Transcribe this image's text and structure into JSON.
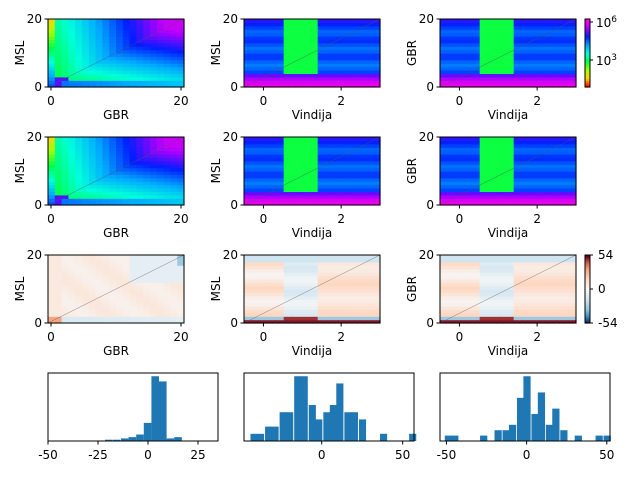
{
  "figure": {
    "rows": [
      [
        {
          "id": "p11",
          "xlabel": "GBR",
          "ylabel": "MSL",
          "xticks": [
            "0",
            "20"
          ],
          "yticks": [
            "0",
            "20"
          ],
          "variant": "gbr-rainbow"
        },
        {
          "id": "p12",
          "xlabel": "Vindija",
          "ylabel": "MSL",
          "xticks": [
            "0",
            "2"
          ],
          "yticks": [
            "0",
            "20"
          ],
          "variant": "vin-msl"
        },
        {
          "id": "p13",
          "xlabel": "Vindija",
          "ylabel": "GBR",
          "xticks": [
            "0",
            "2"
          ],
          "yticks": [
            "0",
            "20"
          ],
          "variant": "vin-gbr"
        }
      ],
      [
        {
          "id": "p21",
          "xlabel": "GBR",
          "ylabel": "MSL",
          "xticks": [
            "0",
            "20"
          ],
          "yticks": [
            "0",
            "20"
          ],
          "variant": "gbr-rainbow"
        },
        {
          "id": "p22",
          "xlabel": "Vindija",
          "ylabel": "MSL",
          "xticks": [
            "0",
            "2"
          ],
          "yticks": [
            "0",
            "20"
          ],
          "variant": "vin-msl"
        },
        {
          "id": "p23",
          "xlabel": "Vindija",
          "ylabel": "GBR",
          "xticks": [
            "0",
            "2"
          ],
          "yticks": [
            "0",
            "20"
          ],
          "variant": "vin-gbr"
        }
      ],
      [
        {
          "id": "p31",
          "xlabel": "GBR",
          "ylabel": "MSL",
          "xticks": [
            "0",
            "20"
          ],
          "yticks": [
            "0",
            "20"
          ],
          "variant": "diff-gbr"
        },
        {
          "id": "p32",
          "xlabel": "Vindija",
          "ylabel": "MSL",
          "xticks": [
            "0",
            "2"
          ],
          "yticks": [
            "0",
            "20"
          ],
          "variant": "diff-vin"
        },
        {
          "id": "p33",
          "xlabel": "Vindija",
          "ylabel": "GBR",
          "xticks": [
            "0",
            "2"
          ],
          "yticks": [
            "0",
            "20"
          ],
          "variant": "diff-vin"
        }
      ]
    ],
    "colorbars": [
      {
        "type": "log-rainbow",
        "ticks": [
          "10^6",
          "10^3"
        ]
      },
      {
        "type": "diverging",
        "ticks": [
          "54",
          "0",
          "-54"
        ]
      }
    ],
    "colors": {
      "bar": "#1f77b4",
      "pos": "#b2182b",
      "neg": "#2166ac"
    }
  },
  "chart_data": [
    {
      "type": "heatmap",
      "xlabel": "GBR",
      "ylabel": "MSL",
      "xlim": [
        0,
        20
      ],
      "ylim": [
        0,
        20
      ],
      "scale": "log",
      "colorbar_ticks": [
        "10^3",
        "10^6"
      ]
    },
    {
      "type": "heatmap",
      "xlabel": "Vindija",
      "ylabel": "MSL",
      "xlim": [
        -0.5,
        3
      ],
      "ylim": [
        0,
        20
      ],
      "x_bands": [
        {
          "x": [
            -0.5,
            0.5
          ],
          "level": "high"
        },
        {
          "x": [
            0.5,
            1.5
          ],
          "level": "mid"
        },
        {
          "x": [
            1.5,
            3
          ],
          "level": "high"
        }
      ]
    },
    {
      "type": "heatmap",
      "xlabel": "Vindija",
      "ylabel": "GBR",
      "xlim": [
        -0.5,
        3
      ],
      "ylim": [
        0,
        20
      ]
    },
    {
      "type": "heatmap",
      "xlabel": "GBR",
      "ylabel": "MSL",
      "xlim": [
        0,
        20
      ],
      "ylim": [
        0,
        20
      ]
    },
    {
      "type": "heatmap",
      "xlabel": "Vindija",
      "ylabel": "MSL",
      "xlim": [
        -0.5,
        3
      ],
      "ylim": [
        0,
        20
      ]
    },
    {
      "type": "heatmap",
      "xlabel": "Vindija",
      "ylabel": "GBR",
      "xlim": [
        -0.5,
        3
      ],
      "ylim": [
        0,
        20
      ]
    },
    {
      "type": "heatmap",
      "xlabel": "GBR",
      "ylabel": "MSL",
      "xlim": [
        0,
        20
      ],
      "ylim": [
        0,
        20
      ],
      "colorbar_range": [
        -54,
        54
      ]
    },
    {
      "type": "heatmap",
      "xlabel": "Vindija",
      "ylabel": "MSL",
      "xlim": [
        -0.5,
        3
      ],
      "ylim": [
        0,
        20
      ],
      "colorbar_range": [
        -54,
        54
      ]
    },
    {
      "type": "heatmap",
      "xlabel": "Vindija",
      "ylabel": "GBR",
      "xlim": [
        -0.5,
        3
      ],
      "ylim": [
        0,
        20
      ],
      "colorbar_ticks": [
        "54",
        "0",
        "-54"
      ],
      "colorbar_range": [
        -54,
        54
      ]
    },
    {
      "type": "bar",
      "xlim": [
        -50,
        35
      ],
      "xticks": [
        "-50",
        "-25",
        "0",
        "25"
      ],
      "bin_width": 3.8,
      "bins": [
        -21.5,
        -17.5,
        -13.5,
        -9.7,
        -5.9,
        -2.1,
        1.7,
        5.5,
        9.3,
        13.1
      ],
      "values": [
        1,
        1,
        2,
        3,
        5,
        14,
        50,
        46,
        2,
        3
      ]
    },
    {
      "type": "bar",
      "xlim": [
        -48,
        57
      ],
      "xticks": [
        "0",
        "50"
      ],
      "bin_width": 4.4,
      "bins": [
        -44,
        -40,
        -35,
        -31,
        -26,
        -22,
        -17,
        -13,
        -8,
        -4,
        1,
        5,
        9,
        14,
        18,
        23,
        27,
        32,
        36,
        40,
        45,
        49,
        54
      ],
      "values": [
        1,
        1,
        2,
        2,
        4,
        4,
        9,
        9,
        5,
        3,
        4,
        5,
        8,
        4,
        4,
        3,
        0,
        0,
        1,
        0,
        0,
        0,
        1
      ]
    },
    {
      "type": "bar",
      "xlim": [
        -54,
        52
      ],
      "xticks": [
        "-50",
        "0",
        "50"
      ],
      "bin_width": 4.5,
      "bins": [
        -51,
        -47,
        -42,
        -38,
        -33,
        -29,
        -24,
        -20,
        -15,
        -11,
        -6,
        -2,
        3,
        7,
        12,
        16,
        21,
        25,
        30,
        34,
        39,
        43,
        48
      ],
      "values": [
        1,
        1,
        0,
        0,
        0,
        1,
        0,
        2,
        2,
        3,
        8,
        12,
        5,
        9,
        3,
        6,
        2,
        0,
        1,
        0,
        0,
        1,
        1
      ]
    }
  ]
}
